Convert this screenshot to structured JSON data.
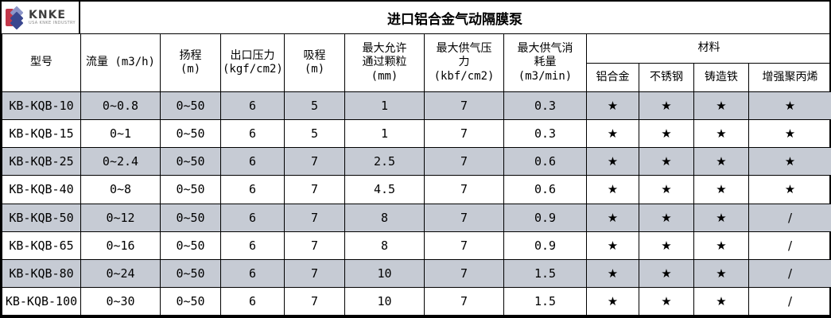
{
  "logo": {
    "name": "KNKE",
    "tagline": "USA KNKE INDUSTRY",
    "colors": {
      "red": "#c2374a",
      "blue_dark": "#3a478f",
      "blue_light": "#8d96c9"
    }
  },
  "title": "进口铝合金气动隔膜泵",
  "colors": {
    "stripe": "#c6cbd4",
    "border": "#000000",
    "background": "#ffffff"
  },
  "table": {
    "header": {
      "main_columns": [
        {
          "lines": [
            "型号"
          ]
        },
        {
          "lines": [
            "流量 (m3/h)"
          ]
        },
        {
          "lines": [
            "扬程",
            "(m)"
          ]
        },
        {
          "lines": [
            "出口压力",
            "(kgf/cm2)"
          ]
        },
        {
          "lines": [
            "吸程",
            "(m)"
          ]
        },
        {
          "lines": [
            "最大允许",
            "通过颗粒",
            "(mm)"
          ]
        },
        {
          "lines": [
            "最大供气压",
            "力",
            "(kbf/cm2)"
          ]
        },
        {
          "lines": [
            "最大供气消",
            "耗量",
            "(m3/min)"
          ]
        }
      ],
      "materials_label": "材料",
      "material_columns": [
        "铝合金",
        "不锈钢",
        "铸造铁",
        "增强聚丙烯"
      ]
    },
    "rows": [
      {
        "model": "KB-KQB-10",
        "flow": "0~0.8",
        "head": "0~50",
        "outlet_pressure": "6",
        "suction": "5",
        "max_particle": "1",
        "max_air_pressure": "7",
        "max_air_consumption": "0.3",
        "materials": [
          "★",
          "★",
          "★",
          "★"
        ]
      },
      {
        "model": "KB-KQB-15",
        "flow": "0~1",
        "head": "0~50",
        "outlet_pressure": "6",
        "suction": "5",
        "max_particle": "1",
        "max_air_pressure": "7",
        "max_air_consumption": "0.3",
        "materials": [
          "★",
          "★",
          "★",
          "★"
        ]
      },
      {
        "model": "KB-KQB-25",
        "flow": "0~2.4",
        "head": "0~50",
        "outlet_pressure": "6",
        "suction": "7",
        "max_particle": "2.5",
        "max_air_pressure": "7",
        "max_air_consumption": "0.6",
        "materials": [
          "★",
          "★",
          "★",
          "★"
        ]
      },
      {
        "model": "KB-KQB-40",
        "flow": "0~8",
        "head": "0~50",
        "outlet_pressure": "6",
        "suction": "7",
        "max_particle": "4.5",
        "max_air_pressure": "7",
        "max_air_consumption": "0.6",
        "materials": [
          "★",
          "★",
          "★",
          "★"
        ]
      },
      {
        "model": "KB-KQB-50",
        "flow": "0~12",
        "head": "0~50",
        "outlet_pressure": "6",
        "suction": "7",
        "max_particle": "8",
        "max_air_pressure": "7",
        "max_air_consumption": "0.9",
        "materials": [
          "★",
          "★",
          "★",
          "/"
        ]
      },
      {
        "model": "KB-KQB-65",
        "flow": "0~16",
        "head": "0~50",
        "outlet_pressure": "6",
        "suction": "7",
        "max_particle": "8",
        "max_air_pressure": "7",
        "max_air_consumption": "0.9",
        "materials": [
          "★",
          "★",
          "★",
          "/"
        ]
      },
      {
        "model": "KB-KQB-80",
        "flow": "0~24",
        "head": "0~50",
        "outlet_pressure": "6",
        "suction": "7",
        "max_particle": "10",
        "max_air_pressure": "7",
        "max_air_consumption": "1.5",
        "materials": [
          "★",
          "★",
          "★",
          "/"
        ]
      },
      {
        "model": "KB-KQB-100",
        "flow": "0~30",
        "head": "0~50",
        "outlet_pressure": "6",
        "suction": "7",
        "max_particle": "10",
        "max_air_pressure": "7",
        "max_air_consumption": "1.5",
        "materials": [
          "★",
          "★",
          "★",
          "/"
        ]
      }
    ]
  }
}
